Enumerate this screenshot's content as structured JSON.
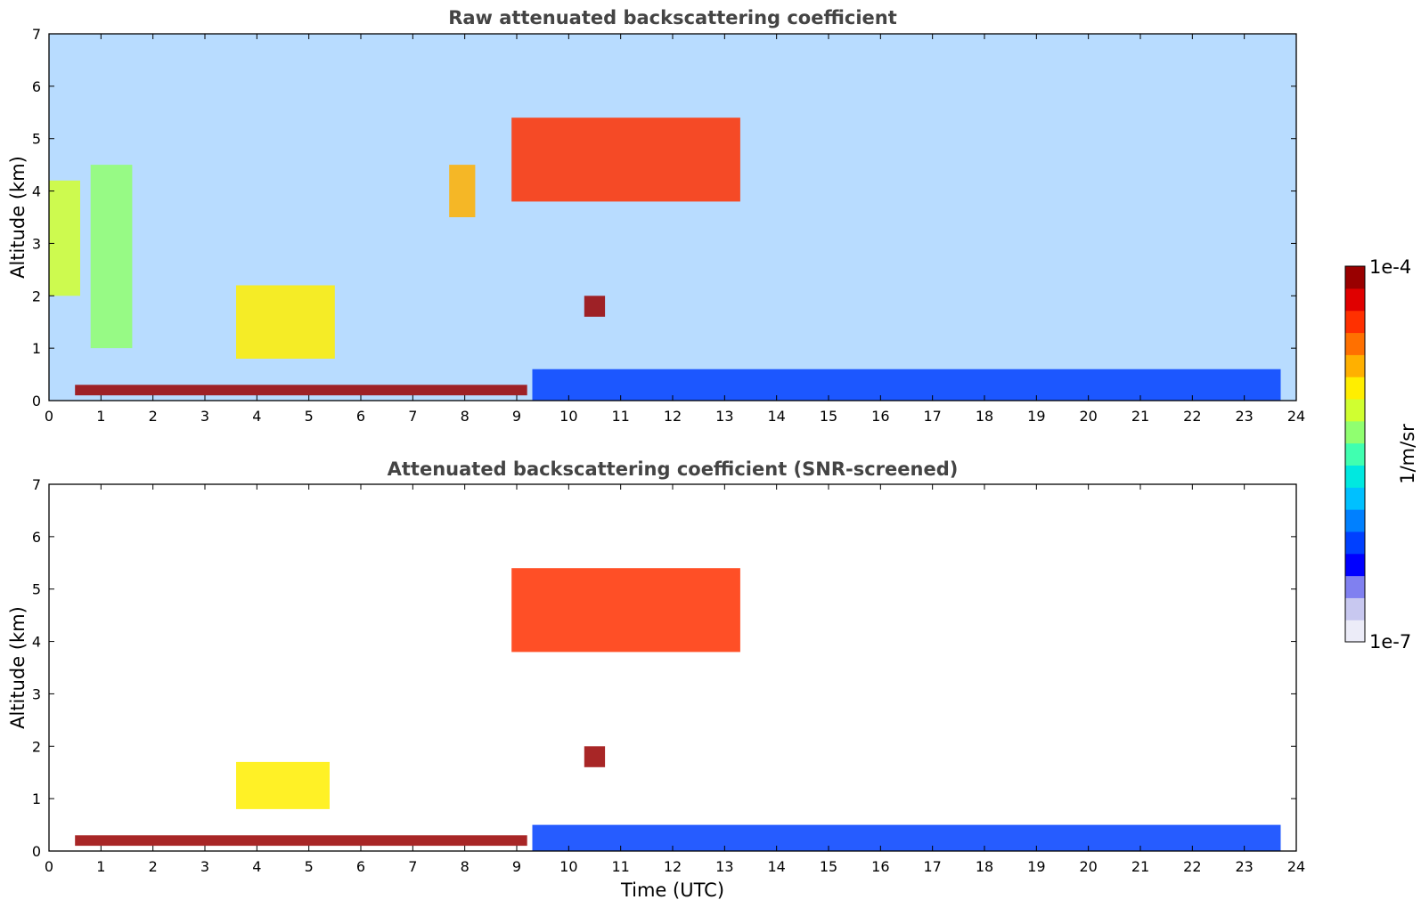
{
  "chart_data": [
    {
      "type": "heatmap",
      "title": "Raw attenuated backscattering coefficient",
      "xlabel": "",
      "ylabel": "Altitude (km)",
      "xlim": [
        0,
        24
      ],
      "ylim": [
        0,
        7
      ],
      "xticks": [
        "0",
        "1",
        "2",
        "3",
        "4",
        "5",
        "6",
        "7",
        "8",
        "9",
        "10",
        "11",
        "12",
        "13",
        "14",
        "15",
        "16",
        "17",
        "18",
        "19",
        "20",
        "21",
        "22",
        "23",
        "24"
      ],
      "yticks": [
        "0",
        "1",
        "2",
        "3",
        "4",
        "5",
        "6",
        "7"
      ],
      "grid": false,
      "features": [
        {
          "desc": "surface aerosol layer",
          "x_range": [
            0.5,
            9.2
          ],
          "y_range": [
            0.1,
            0.3
          ],
          "level": 1.0
        },
        {
          "desc": "cloud",
          "x_range": [
            0,
            0.6
          ],
          "y_range": [
            2.0,
            4.2
          ],
          "level": 0.6
        },
        {
          "desc": "cloud",
          "x_range": [
            0.8,
            1.6
          ],
          "y_range": [
            1.0,
            4.5
          ],
          "level": 0.55
        },
        {
          "desc": "low cloud",
          "x_range": [
            3.6,
            5.5
          ],
          "y_range": [
            0.8,
            2.2
          ],
          "level": 0.7
        },
        {
          "desc": "elevated layer",
          "x_range": [
            7.7,
            8.2
          ],
          "y_range": [
            3.5,
            4.5
          ],
          "level": 0.75
        },
        {
          "desc": "mid-level cloud",
          "x_range": [
            8.9,
            13.3
          ],
          "y_range": [
            3.8,
            5.4
          ],
          "level": 0.85
        },
        {
          "desc": "small cloud",
          "x_range": [
            10.3,
            10.7
          ],
          "y_range": [
            1.6,
            2.0
          ],
          "level": 1.0
        },
        {
          "desc": "boundary layer",
          "x_range": [
            9.3,
            23.7
          ],
          "y_range": [
            0,
            0.6
          ],
          "level": 0.25
        }
      ]
    },
    {
      "type": "heatmap",
      "title": "Attenuated backscattering coefficient (SNR-screened)",
      "xlabel": "Time (UTC)",
      "ylabel": "Altitude (km)",
      "xlim": [
        0,
        24
      ],
      "ylim": [
        0,
        7
      ],
      "xticks": [
        "0",
        "1",
        "2",
        "3",
        "4",
        "5",
        "6",
        "7",
        "8",
        "9",
        "10",
        "11",
        "12",
        "13",
        "14",
        "15",
        "16",
        "17",
        "18",
        "19",
        "20",
        "21",
        "22",
        "23",
        "24"
      ],
      "yticks": [
        "0",
        "1",
        "2",
        "3",
        "4",
        "5",
        "6",
        "7"
      ],
      "grid": false,
      "features": [
        {
          "desc": "surface aerosol layer",
          "x_range": [
            0.5,
            9.2
          ],
          "y_range": [
            0.1,
            0.3
          ],
          "level": 1.0
        },
        {
          "desc": "low cloud",
          "x_range": [
            3.6,
            5.4
          ],
          "y_range": [
            0.8,
            1.7
          ],
          "level": 0.7
        },
        {
          "desc": "mid-level cloud",
          "x_range": [
            8.9,
            13.3
          ],
          "y_range": [
            3.8,
            5.4
          ],
          "level": 0.85
        },
        {
          "desc": "small cloud",
          "x_range": [
            10.3,
            10.7
          ],
          "y_range": [
            1.6,
            2.0
          ],
          "level": 1.0
        },
        {
          "desc": "boundary layer",
          "x_range": [
            9.3,
            23.7
          ],
          "y_range": [
            0,
            0.5
          ],
          "level": 0.25
        }
      ]
    }
  ],
  "colorbar": {
    "max_label": "1e-4",
    "min_label": "1e-7",
    "unit_label": "1/m/sr",
    "colormap": [
      "#ececf8",
      "#c8c8f0",
      "#8080f0",
      "#0000ff",
      "#0040ff",
      "#0080ff",
      "#00c0ff",
      "#00e8e0",
      "#40ffb0",
      "#90ff70",
      "#d0ff30",
      "#ffee00",
      "#ffb000",
      "#ff7000",
      "#ff3000",
      "#e00000",
      "#990000"
    ]
  }
}
